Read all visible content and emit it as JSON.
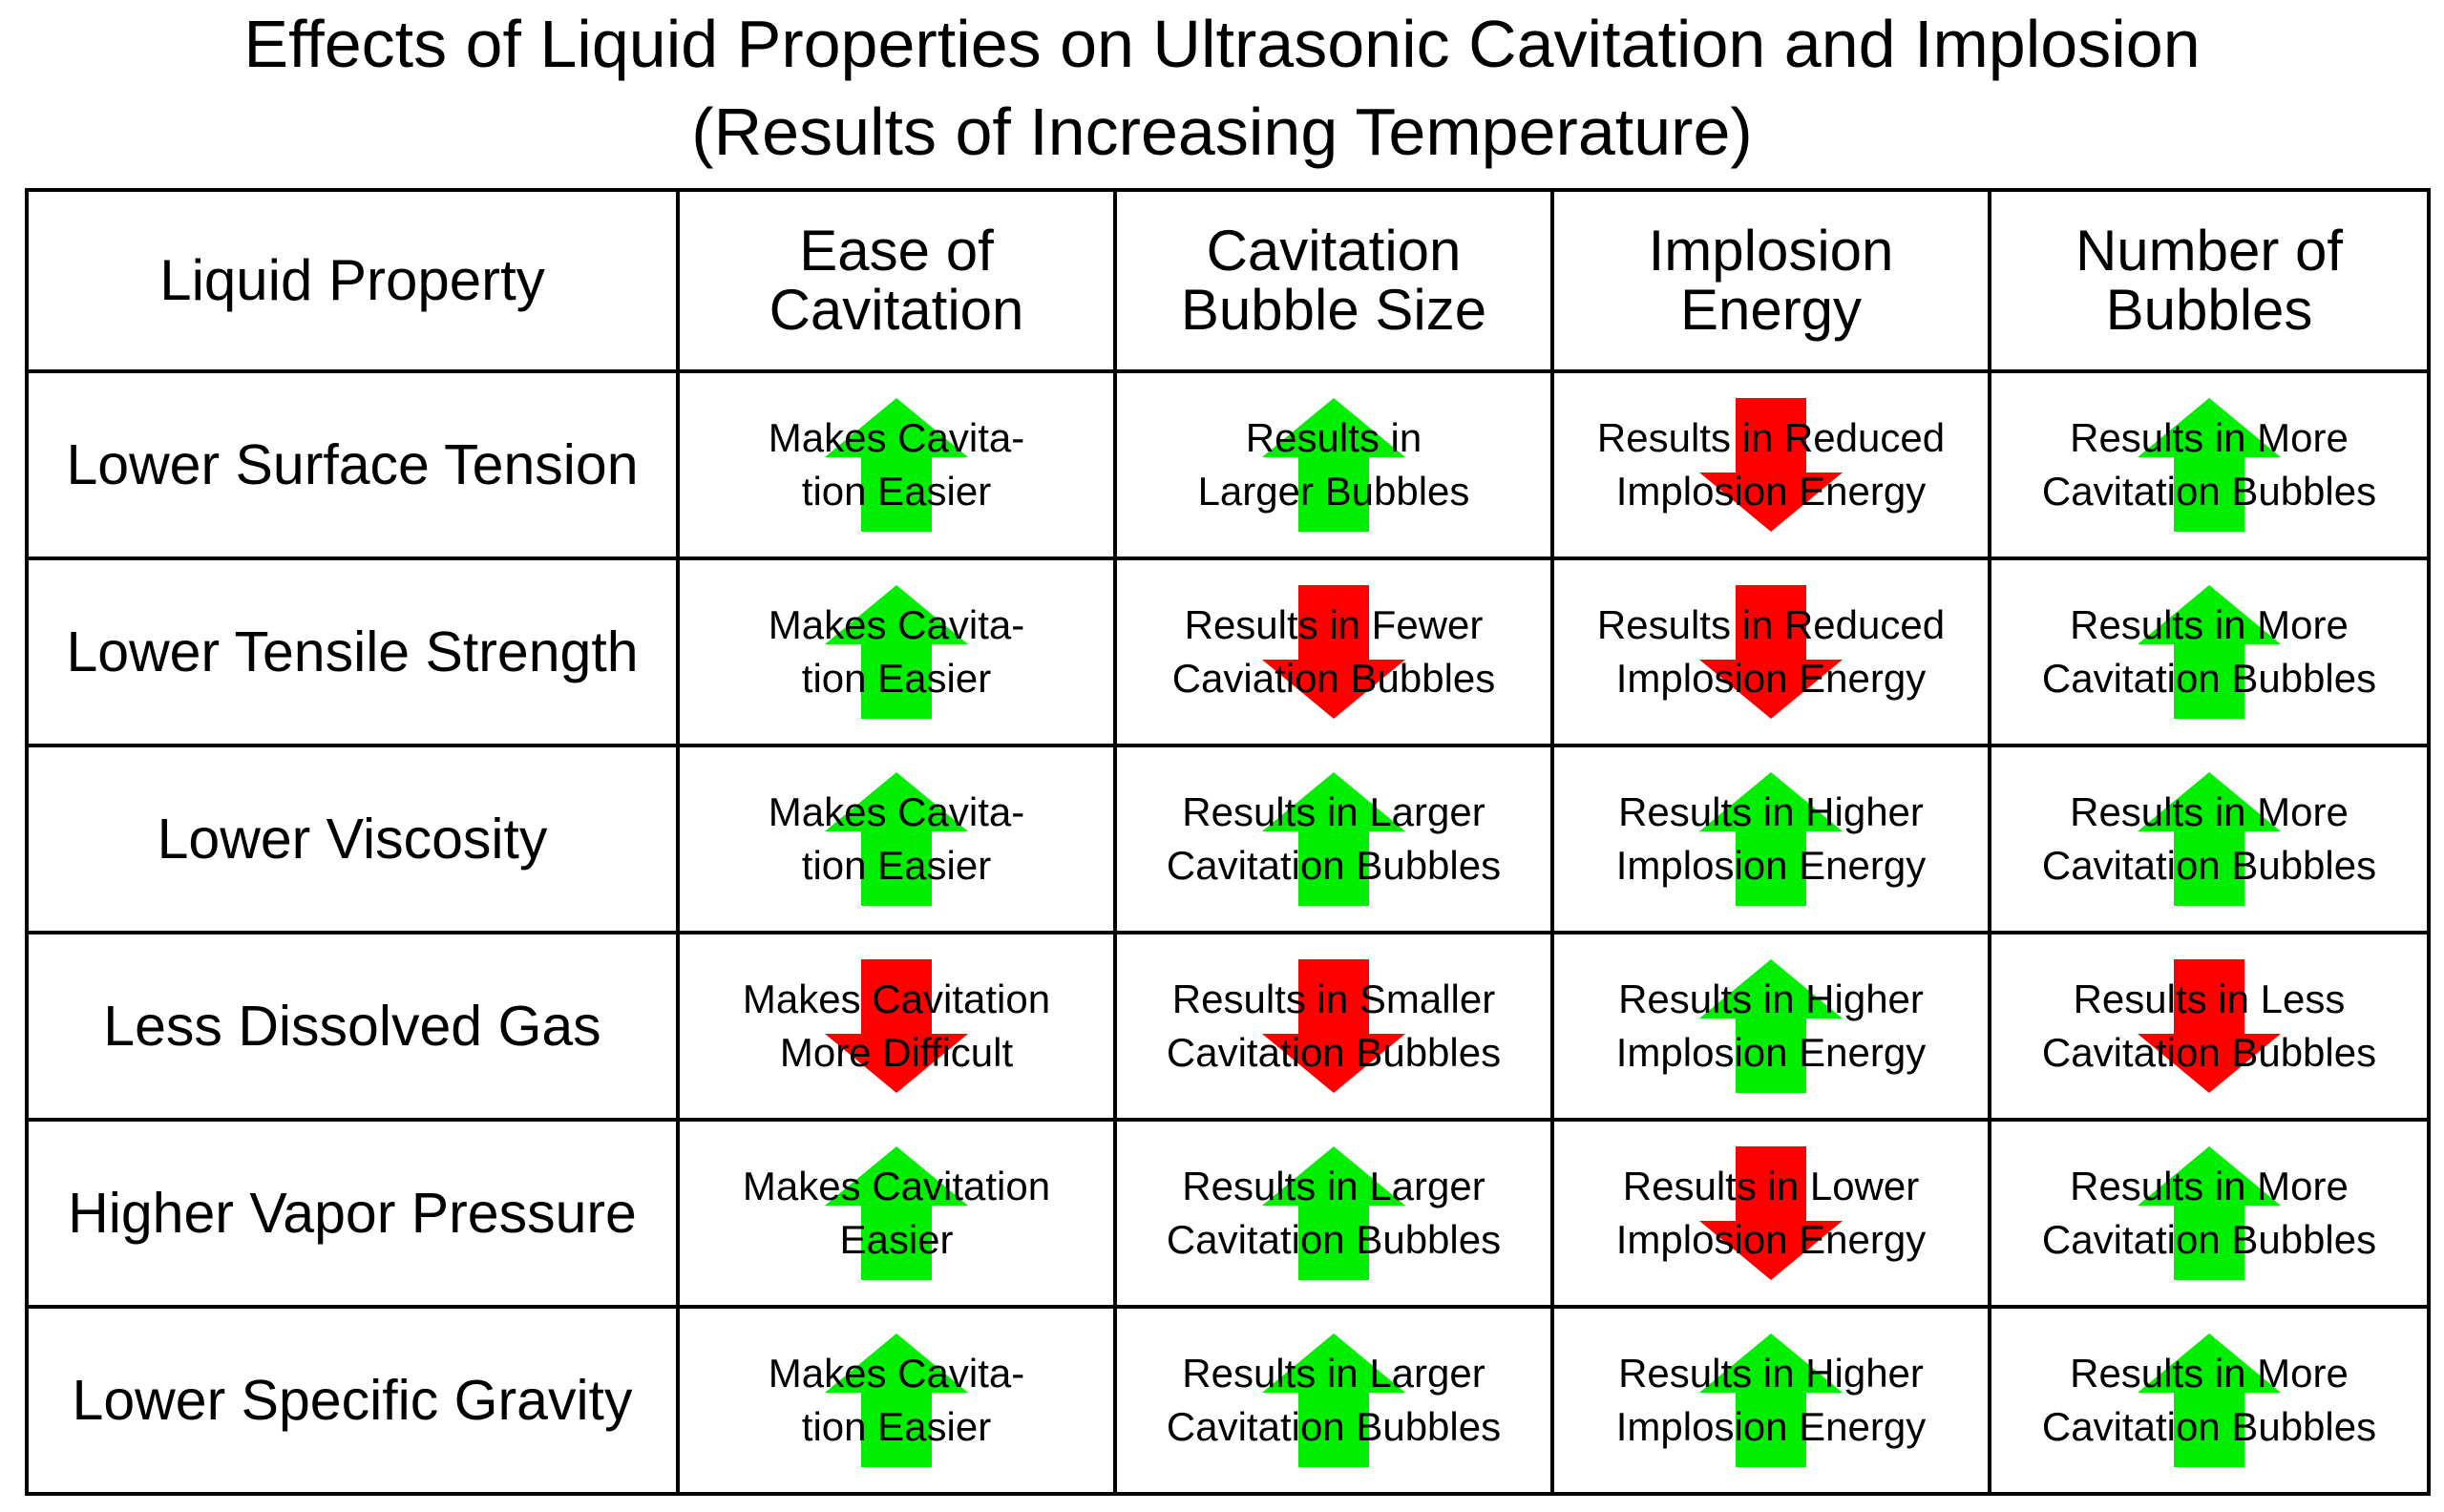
{
  "title": {
    "line1": "Effects of Liquid Properties on Ultrasonic Cavitation and Implosion",
    "line2": "(Results of Increasing Temperature)"
  },
  "colors": {
    "up": "#00ee00",
    "down": "#ff0000",
    "border": "#000000"
  },
  "headers": [
    "Liquid Property",
    "Ease of\nCavitation",
    "Cavitation\nBubble Size",
    "Implosion\nEnergy",
    "Number of\nBubbles"
  ],
  "rows": [
    {
      "property": "Lower Surface Tension",
      "cells": [
        {
          "text": "Makes Cavita-\ntion Easier",
          "arrow": "up-arrow-icon"
        },
        {
          "text": "Results in\nLarger Bubbles",
          "arrow": "up-arrow-icon"
        },
        {
          "text": "Results in Reduced\nImplosion Energy",
          "arrow": "down-arrow-icon"
        },
        {
          "text": "Results in More\nCavitation Bubbles",
          "arrow": "up-arrow-icon"
        }
      ]
    },
    {
      "property": "Lower Tensile Strength",
      "cells": [
        {
          "text": "Makes Cavita-\ntion Easier",
          "arrow": "up-arrow-icon"
        },
        {
          "text": "Results in Fewer\nCaviation Bubbles",
          "arrow": "down-arrow-icon"
        },
        {
          "text": "Results in Reduced\nImplosion Energy",
          "arrow": "down-arrow-icon"
        },
        {
          "text": "Results in More\nCavitation Bubbles",
          "arrow": "up-arrow-icon"
        }
      ]
    },
    {
      "property": "Lower Viscosity",
      "cells": [
        {
          "text": "Makes Cavita-\ntion Easier",
          "arrow": "up-arrow-icon"
        },
        {
          "text": "Results in Larger\nCavitation Bubbles",
          "arrow": "up-arrow-icon"
        },
        {
          "text": "Results in Higher\nImplosion Energy",
          "arrow": "up-arrow-icon"
        },
        {
          "text": "Results in More\nCavitation Bubbles",
          "arrow": "up-arrow-icon"
        }
      ]
    },
    {
      "property": "Less Dissolved Gas",
      "cells": [
        {
          "text": "Makes Cavitation\nMore Difficult",
          "arrow": "down-arrow-icon"
        },
        {
          "text": "Results in Smaller\nCavitation Bubbles",
          "arrow": "down-arrow-icon"
        },
        {
          "text": "Results in Higher\nImplosion Energy",
          "arrow": "up-arrow-icon"
        },
        {
          "text": "Results in Less\nCavitation Bubbles",
          "arrow": "down-arrow-icon"
        }
      ]
    },
    {
      "property": "Higher Vapor Pressure",
      "cells": [
        {
          "text": "Makes Cavitation\nEasier",
          "arrow": "up-arrow-icon"
        },
        {
          "text": "Results in Larger\nCavitation Bubbles",
          "arrow": "up-arrow-icon"
        },
        {
          "text": "Results in Lower\nImplosion Energy",
          "arrow": "down-arrow-icon"
        },
        {
          "text": "Results in More\nCavitation Bubbles",
          "arrow": "up-arrow-icon"
        }
      ]
    },
    {
      "property": "Lower Specific Gravity",
      "cells": [
        {
          "text": "Makes Cavita-\ntion Easier",
          "arrow": "up-arrow-icon"
        },
        {
          "text": "Results in Larger\nCavitation Bubbles",
          "arrow": "up-arrow-icon"
        },
        {
          "text": "Results in Higher\nImplosion Energy",
          "arrow": "up-arrow-icon"
        },
        {
          "text": "Results in More\nCavitation Bubbles",
          "arrow": "up-arrow-icon"
        }
      ]
    }
  ]
}
